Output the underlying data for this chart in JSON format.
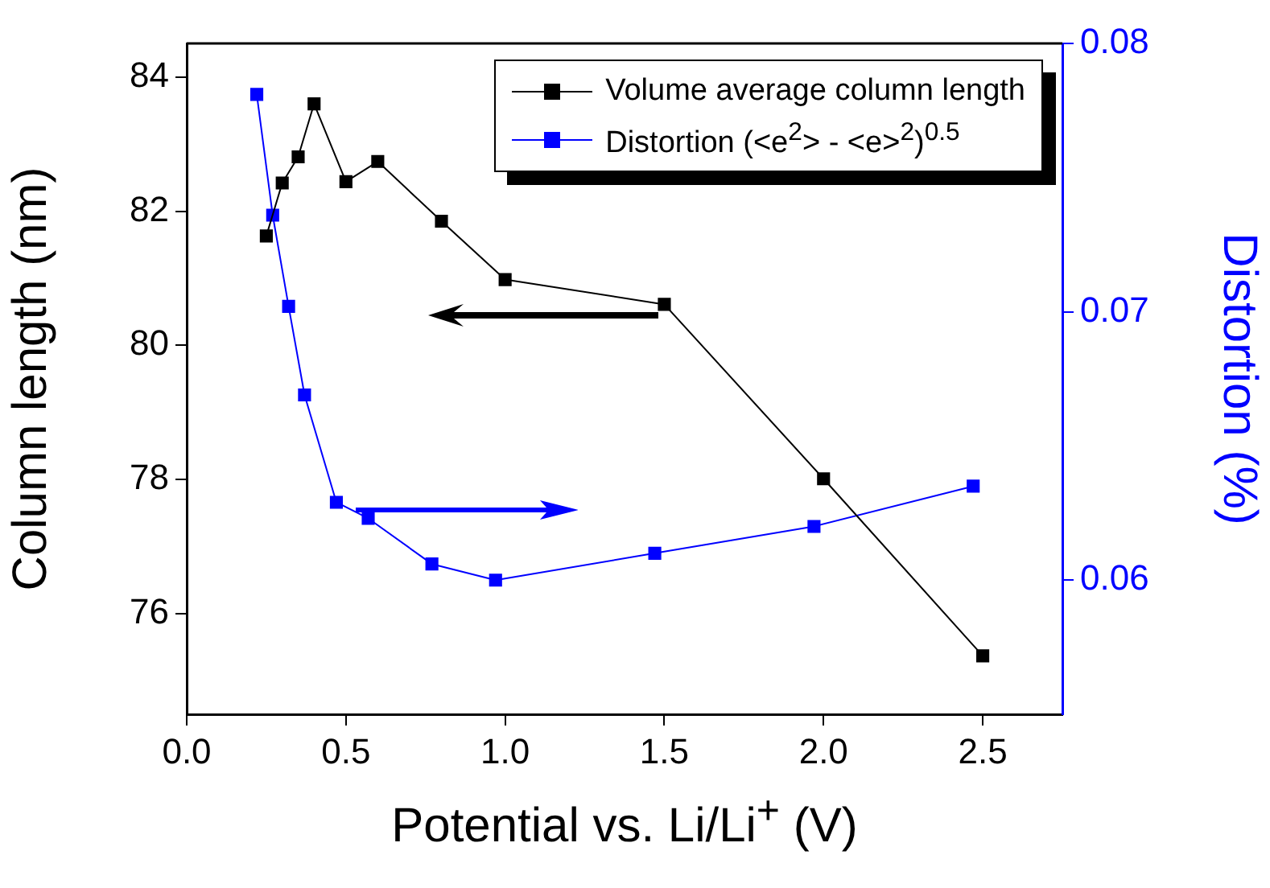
{
  "chart_data": {
    "type": "line",
    "xlabel": "Potential vs. Li/Li$^{+}$ (V)",
    "ylabel": "Column length (nm)",
    "y2label": "Distortion (%)",
    "xlim": [
      0,
      2.75
    ],
    "xticks": [
      {
        "value": 0,
        "label": "0.0"
      },
      0.5,
      {
        "value": 1,
        "label": "1.0"
      },
      1.5,
      {
        "value": 2,
        "label": "2.0"
      },
      2.5
    ],
    "ylim": [
      74.5,
      84.5
    ],
    "yticks": [
      76,
      78,
      80,
      82,
      84
    ],
    "y2lim": [
      0.055,
      0.08
    ],
    "y2ticks": [
      0.06,
      0.07,
      0.08
    ],
    "series": [
      {
        "name": "Volume average column length",
        "color": "#000000",
        "x": [
          0.25,
          0.3,
          0.35,
          0.4,
          0.5,
          0.6,
          0.8,
          1.0,
          1.5,
          2.0,
          2.5
        ],
        "values": [
          81.63,
          82.42,
          82.81,
          83.6,
          82.44,
          82.74,
          81.85,
          80.98,
          80.61,
          78.01,
          75.37
        ]
      },
      {
        "name": "Distortion (<e$^{2}$> - <e>$^{2}$)$^{0.5}$",
        "color": "#0000ff",
        "axis": "y2",
        "x": [
          0.22,
          0.27,
          0.32,
          0.37,
          0.47,
          0.57,
          0.77,
          0.97,
          1.47,
          1.97,
          2.47
        ],
        "values": [
          0.0781,
          0.0736,
          0.0702,
          0.0669,
          0.0629,
          0.0623,
          0.0606,
          0.06,
          0.061,
          0.062,
          0.0635
        ]
      }
    ],
    "legend": "top right",
    "marker": "square",
    "line_style": "solid",
    "grid": false
  }
}
